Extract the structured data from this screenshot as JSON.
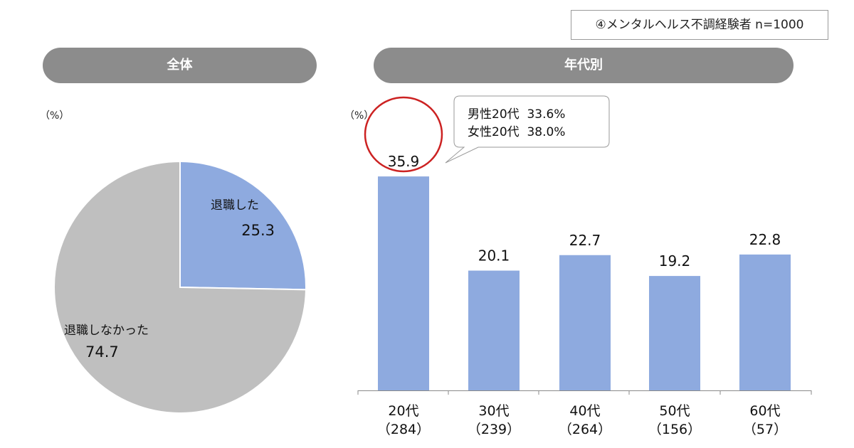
{
  "note": "④メンタルヘルス不調経験者 n=1000",
  "colors": {
    "accent": "#8eaadf",
    "gray_slice": "#bfbfbf",
    "pill": "#8c8c8c",
    "highlight_circle": "#cc2222"
  },
  "left": {
    "title": "全体",
    "unit": "（%）",
    "pie": {
      "type": "pie",
      "slices": [
        {
          "label": "退職した",
          "value": 25.3,
          "value_label": "25.3",
          "color": "#8eaadf"
        },
        {
          "label": "退職しなかった",
          "value": 74.7,
          "value_label": "74.7",
          "color": "#bfbfbf"
        }
      ]
    }
  },
  "right": {
    "title": "年代別",
    "unit": "（%）",
    "callout": {
      "line1": "男性20代  33.6%",
      "line2": "女性20代  38.0%"
    }
  },
  "chart_data": [
    {
      "type": "pie",
      "title": "全体",
      "categories": [
        "退職した",
        "退職しなかった"
      ],
      "values": [
        25.3,
        74.7
      ]
    },
    {
      "type": "bar",
      "title": "年代別",
      "categories": [
        "20代",
        "30代",
        "40代",
        "50代",
        "60代"
      ],
      "subcategories": [
        "（284）",
        "（239）",
        "（264）",
        "（156）",
        "（57）"
      ],
      "values": [
        35.9,
        20.1,
        22.7,
        19.2,
        22.8
      ],
      "value_labels": [
        "35.9",
        "20.1",
        "22.7",
        "19.2",
        "22.8"
      ],
      "ylim": [
        0,
        42
      ],
      "highlight_index": 0,
      "color": "#8eaadf"
    }
  ]
}
